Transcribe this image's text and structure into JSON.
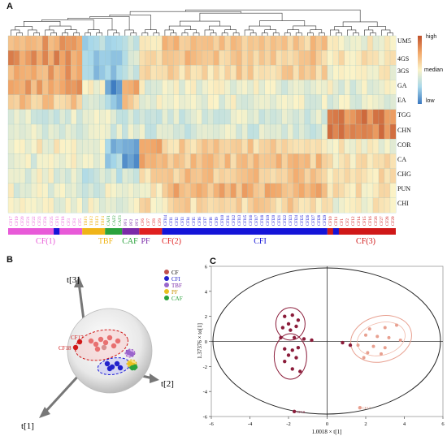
{
  "panels": {
    "a": "A",
    "b": "B",
    "c": "C"
  },
  "colors": {
    "CF(1)": "#e85ad8",
    "TBF": "#f0b418",
    "CAF": "#2aa23c",
    "PF": "#7a2aa8",
    "CF(2)": "#e02020",
    "CFI": "#1414d8",
    "CF(3)": "#d01818"
  },
  "heatmap": {
    "rows": [
      "UM5",
      "4GS",
      "3GS",
      "GA",
      "EA",
      "TGG",
      "CHN",
      "COR",
      "CA",
      "CHG",
      "PUN",
      "CHI"
    ],
    "legend": {
      "high": "high",
      "median": "median",
      "low": "low"
    },
    "columns": [
      "CF17",
      "CF19",
      "CF20",
      "CF21",
      "CF22",
      "CF23",
      "CF24",
      "CF25",
      "CF13",
      "CF18",
      "CF3",
      "CF4",
      "CF5",
      "TBF1",
      "TBF2",
      "TBF3",
      "TBF4",
      "CAF1",
      "CAF2",
      "CAF3",
      "PF1",
      "PF2",
      "PF3",
      "CF6",
      "CF7",
      "CF8",
      "CF9",
      "CFI14",
      "CFI1",
      "CFI2",
      "CFI3",
      "CFI4",
      "CFI5",
      "CFI6",
      "CFI7",
      "CFI8",
      "CFI9",
      "CFI10",
      "CFI11",
      "CFI12",
      "CFI13",
      "CFI15",
      "CFI16",
      "CFI17",
      "CFI18",
      "CFI19",
      "CFI20",
      "CFI21",
      "CFI22",
      "CFI23",
      "CFI24",
      "CFI25",
      "CFI26",
      "CFI27",
      "CFI28",
      "CFI29",
      "CF10",
      "CF11",
      "CF1",
      "CF2",
      "CF12",
      "CF14",
      "CF15",
      "CF16",
      "CF26",
      "CF27",
      "CF28",
      "CF29"
    ],
    "groups": [
      {
        "label": "CF(1)",
        "start": 0,
        "end": 13
      },
      {
        "label": "TBF",
        "start": 13,
        "end": 17
      },
      {
        "label": "CAF",
        "start": 17,
        "end": 20
      },
      {
        "label": "PF",
        "start": 20,
        "end": 23
      },
      {
        "label": "CF(2)",
        "start": 23,
        "end": 27
      },
      {
        "label": "CFI",
        "start": 27,
        "end": 56
      },
      {
        "label": "CF(3)",
        "start": 56,
        "end": 68
      }
    ]
  },
  "chart_data": [
    {
      "type": "heatmap",
      "rows": [
        "UM5",
        "4GS",
        "3GS",
        "GA",
        "EA",
        "TGG",
        "CHN",
        "COR",
        "CA",
        "CHG",
        "PUN",
        "CHI"
      ],
      "group_levels": {
        "note_scale": "-1 low, 0 median, 1 high",
        "CF(1)": [
          0.5,
          0.6,
          0.5,
          0.5,
          0.3,
          -0.2,
          -0.2,
          0.0,
          -0.1,
          -0.1,
          -0.1,
          -0.1
        ],
        "TBF": [
          -0.5,
          -0.5,
          -0.6,
          0.0,
          -0.2,
          -0.1,
          -0.1,
          0.0,
          0.0,
          -0.3,
          -0.2,
          -0.1
        ],
        "CAF": [
          -0.6,
          -0.6,
          -0.6,
          -0.9,
          -0.6,
          -0.2,
          -0.2,
          -0.6,
          -0.5,
          -0.3,
          -0.1,
          -0.1
        ],
        "PF": [
          -0.3,
          -0.3,
          -0.3,
          0.6,
          0.3,
          -0.2,
          -0.2,
          -0.7,
          -0.8,
          -0.3,
          0.0,
          -0.1
        ],
        "CF(2)": [
          0.1,
          0.2,
          0.1,
          -0.1,
          -0.1,
          -0.2,
          -0.2,
          0.6,
          0.5,
          0.2,
          0.1,
          0.1
        ],
        "CFI": [
          0.3,
          0.3,
          0.2,
          -0.1,
          -0.1,
          -0.2,
          -0.2,
          0.2,
          0.3,
          0.3,
          0.4,
          0.2
        ],
        "CF(3)": [
          0.0,
          0.1,
          0.0,
          -0.1,
          -0.1,
          0.7,
          0.7,
          0.0,
          0.1,
          0.1,
          0.1,
          0.0
        ]
      }
    },
    {
      "type": "scatter",
      "subtype": "3d-score-plot",
      "axes": [
        "t[1]",
        "t[2]",
        "t[3]"
      ],
      "legend": [
        "CF",
        "CFI",
        "TBF",
        "PF",
        "CAF"
      ],
      "labelled_points": [
        "CF17",
        "CF18"
      ]
    },
    {
      "type": "scatter",
      "xlabel": "1.0018 × t[1]",
      "ylabel": "1.37376 × to[1]",
      "xlim": [
        -6,
        6
      ],
      "ylim": [
        -6,
        6
      ],
      "xticks": [
        -6,
        -4,
        -2,
        0,
        2,
        4,
        6
      ],
      "yticks": [
        -6,
        -4,
        -2,
        0,
        2,
        4,
        6
      ],
      "points": [
        {
          "label": "CF17",
          "x": 1.7,
          "y": -5.3,
          "group": "b"
        },
        {
          "label": "CF18",
          "x": -1.7,
          "y": -5.6,
          "group": "a"
        }
      ]
    }
  ]
}
